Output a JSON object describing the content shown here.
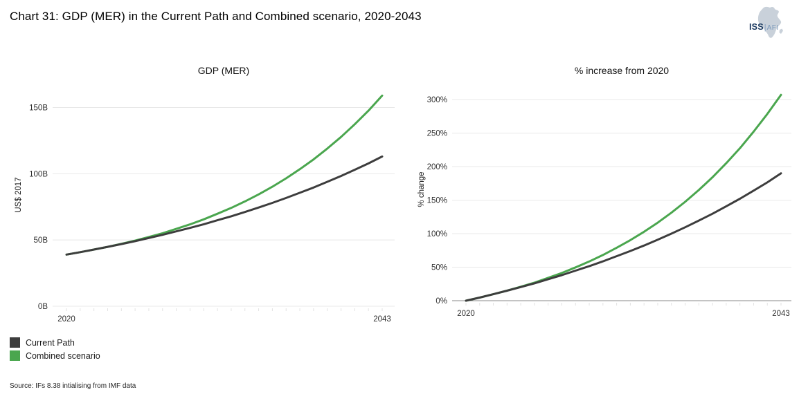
{
  "header": {
    "title": "Chart 31: GDP (MER) in the Current Path and Combined scenario, 2020-2043"
  },
  "logo": {
    "iss": "ISS",
    "divider": "|",
    "afi": "AFI",
    "icon": "africa-map"
  },
  "colors": {
    "current_path": "#3d3d3d",
    "combined": "#4aa64e",
    "gridline": "#e8e8e8",
    "zero_axis": "#8a8a8a",
    "minor_tick": "#e2e2e2"
  },
  "chart_data": [
    {
      "type": "line",
      "title": "GDP (MER)",
      "ylabel": "US$ 2017",
      "xlabel": "",
      "x": [
        2020,
        2021,
        2022,
        2023,
        2024,
        2025,
        2026,
        2027,
        2028,
        2029,
        2030,
        2031,
        2032,
        2033,
        2034,
        2035,
        2036,
        2037,
        2038,
        2039,
        2040,
        2041,
        2042,
        2043
      ],
      "x_tick_labels": [
        "2020",
        "2043"
      ],
      "ylim": [
        0,
        168
      ],
      "y_ticks": [
        {
          "v": 0,
          "label": "0B"
        },
        {
          "v": 50,
          "label": "50B"
        },
        {
          "v": 100,
          "label": "100B"
        },
        {
          "v": 150,
          "label": "150B"
        }
      ],
      "grid": true,
      "zero_axis": false,
      "legend_position": "below-left",
      "series": [
        {
          "name": "Current Path",
          "color_key": "current_path",
          "values": [
            39,
            40.8,
            42.8,
            44.8,
            46.9,
            49.1,
            51.5,
            53.9,
            56.5,
            59.1,
            61.9,
            64.9,
            67.9,
            71.1,
            74.5,
            78,
            81.7,
            85.6,
            89.6,
            93.9,
            98.3,
            103,
            107.8,
            113
          ]
        },
        {
          "name": "Combined scenario",
          "color_key": "combined",
          "values": [
            39,
            40.8,
            42.8,
            44.8,
            47.1,
            49.5,
            52.3,
            55.1,
            58.4,
            61.8,
            65.6,
            69.8,
            74.2,
            79.1,
            84.4,
            90.2,
            96.5,
            103.4,
            110.8,
            119,
            127.7,
            137.3,
            147.6,
            159
          ]
        }
      ]
    },
    {
      "type": "line",
      "title": "% increase from 2020",
      "ylabel": "% change",
      "xlabel": "",
      "x": [
        2020,
        2021,
        2022,
        2023,
        2024,
        2025,
        2026,
        2027,
        2028,
        2029,
        2030,
        2031,
        2032,
        2033,
        2034,
        2035,
        2036,
        2037,
        2038,
        2039,
        2040,
        2041,
        2042,
        2043
      ],
      "x_tick_labels": [
        "2020",
        "2043"
      ],
      "ylim": [
        0,
        332
      ],
      "y_ticks": [
        {
          "v": 0,
          "label": "0%"
        },
        {
          "v": 50,
          "label": "50%"
        },
        {
          "v": 100,
          "label": "100%"
        },
        {
          "v": 150,
          "label": "150%"
        },
        {
          "v": 200,
          "label": "200%"
        },
        {
          "v": 250,
          "label": "250%"
        },
        {
          "v": 300,
          "label": "300%"
        }
      ],
      "grid": true,
      "zero_axis": true,
      "legend_position": "none",
      "series": [
        {
          "name": "Current Path",
          "color_key": "current_path",
          "values": [
            0,
            4.6,
            9.7,
            14.9,
            20.3,
            25.9,
            32.1,
            38.2,
            44.9,
            51.5,
            58.7,
            66.4,
            74.1,
            82.3,
            91,
            100,
            109.5,
            119.5,
            129.7,
            140.8,
            152.1,
            164.1,
            176.4,
            190
          ]
        },
        {
          "name": "Combined scenario",
          "color_key": "combined",
          "values": [
            0,
            4.6,
            9.7,
            14.9,
            20.8,
            26.9,
            34.1,
            41.3,
            49.7,
            58.5,
            68.2,
            79,
            90.3,
            102.8,
            116.4,
            131.3,
            147.4,
            165.1,
            184.1,
            205.1,
            227.4,
            252.1,
            278.5,
            307
          ]
        }
      ]
    }
  ],
  "legend": {
    "items": [
      {
        "label": "Current Path",
        "color_key": "current_path"
      },
      {
        "label": "Combined scenario",
        "color_key": "combined"
      }
    ]
  },
  "footer": {
    "source": "Source: IFs 8.38 intialising from IMF data"
  }
}
